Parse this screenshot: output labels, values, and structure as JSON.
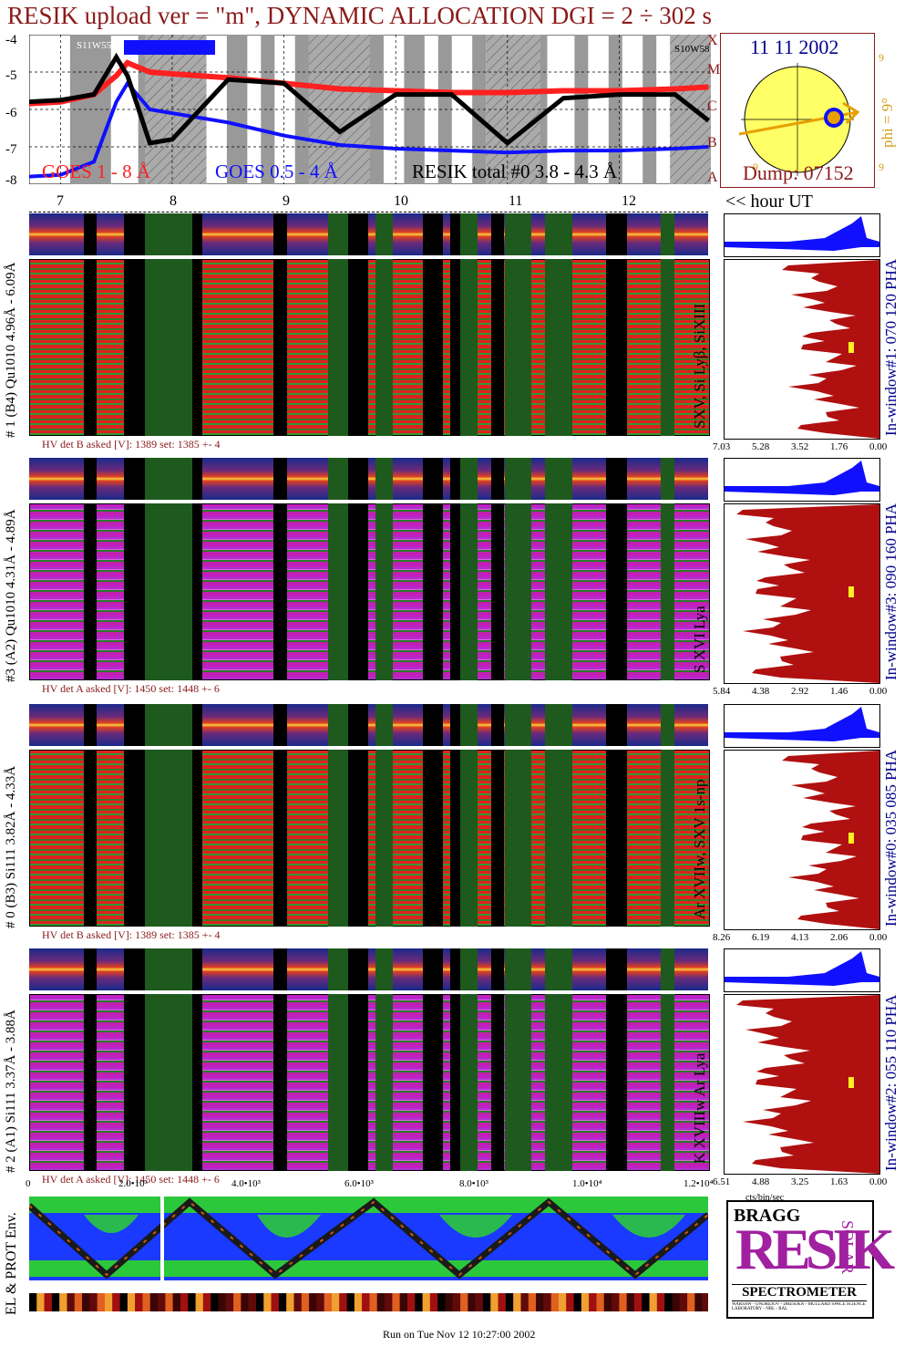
{
  "header": {
    "title": "RESIK upload ver = \"m\", DYNAMIC ALLOCATION  DGI =   2 ÷ 302 s"
  },
  "goes": {
    "y_ticks": [
      "-4",
      "-5",
      "-6",
      "-7",
      "-8"
    ],
    "legend_red": "GOES 1 - 8 Å",
    "legend_blue": "GOES 0.5 - 4 Å",
    "legend_black": "RESIK total #0  3.8 - 4.3 Å",
    "flare_classes": [
      "A",
      "B",
      "C",
      "M",
      "X"
    ],
    "top_left_label": "S11W55",
    "top_right_label": "S10W58",
    "colors": {
      "red": "#ff2020",
      "blue": "#1010ff",
      "black": "#000000",
      "shade": "#999999"
    }
  },
  "sun": {
    "date": "11 11 2002",
    "phi_label": "phi =  9°",
    "phi_side_ticks": [
      "9",
      "9",
      "9"
    ],
    "dump": "Dump: 07152",
    "colors": {
      "disk": "#ffff66",
      "arrow": "#e8a000",
      "spot": "#1010ff"
    }
  },
  "hour_axis": {
    "ticks": [
      "7",
      "8",
      "9",
      "10",
      "11",
      "12"
    ],
    "unit_label": "<< hour UT"
  },
  "panels": [
    {
      "left_label": "# 1 (B4) Qu1010 4.96Å - 6.09Å",
      "line_label": "SXV, Si Lyβ, SiXIII",
      "right_label": "In-window#1:  070 120 PHA",
      "hv_text": "HV det B asked [V]:  1389 set:  1385 +-   4",
      "hist_ticks": [
        "7.03",
        "5.28",
        "3.52",
        "1.76",
        "0.00"
      ],
      "style": "red"
    },
    {
      "left_label": "#3 (A2) Qu1010  4.31Å - 4.89Å",
      "line_label": "S XVI Lya",
      "right_label": "In-window#3:  090 160 PHA",
      "hv_text": "HV det A asked [V]:  1450 set:  1448 +-   6",
      "hist_ticks": [
        "5.84",
        "4.38",
        "2.92",
        "1.46",
        "0.00"
      ],
      "style": "magenta"
    },
    {
      "left_label": "# 0 (B3) Si111  3.82Å - 4.33Å",
      "line_label": "Ar XVIIw,  SXV 1s-np",
      "right_label": "In-window#0:  035 085 PHA",
      "hv_text": "HV det B asked [V]:  1389 set:  1385 +-   4",
      "hist_ticks": [
        "8.26",
        "6.19",
        "4.13",
        "2.06",
        "0.00"
      ],
      "style": "red"
    },
    {
      "left_label": "# 2 (A1) Si111  3.37Å -  3.88Å",
      "line_label": "K XVIIIw  Ar Lya",
      "right_label": "In-window#2:  055 110 PHA",
      "hv_text": "HV det A asked [V]:  1450 set:  1448 +-   6",
      "hist_ticks": [
        "6.51",
        "4.88",
        "3.25",
        "1.63",
        "0.00"
      ],
      "style": "magenta"
    }
  ],
  "seconds_axis": {
    "ticks": [
      "0",
      "2.0•10³",
      "4.0•10³",
      "6.0•10³",
      "8.0•10³",
      "1.0•10⁴",
      "1.2•10⁴"
    ]
  },
  "hist_unit": "cts/bin/sec",
  "bottom": {
    "left_label": "EL & PROT Env.",
    "footer": "Run on Tue Nov 12 10:27:00 2002"
  },
  "logo": {
    "letters_top": "BRAGG",
    "big": "RESIK",
    "side": "SOLAR",
    "caption": "SPECTROMETER",
    "fine_print": "WARSAW - ONDREJOV - DRESDEN - MULLARD SPACE SCIENCE LABORATORY - NRL - RAL"
  },
  "chart_data": {
    "type": "line",
    "title": "RESIK upload ver = \"m\", DYNAMIC ALLOCATION  DGI =   2 ÷ 302 s",
    "x_unit_ticks": [
      "7",
      "8",
      "9",
      "10",
      "11",
      "12"
    ],
    "ylim": [
      -8,
      -4
    ],
    "x": [
      6.7,
      7.0,
      7.3,
      7.5,
      7.6,
      7.8,
      8.0,
      8.5,
      9.0,
      9.5,
      10.0,
      10.5,
      11.0,
      11.5,
      12.0,
      12.5,
      12.8
    ],
    "series": [
      {
        "name": "GOES 1 - 8 Å",
        "values": [
          -5.85,
          -5.8,
          -5.6,
          -5.1,
          -4.75,
          -5.0,
          -5.05,
          -5.15,
          -5.3,
          -5.45,
          -5.5,
          -5.55,
          -5.55,
          -5.5,
          -5.5,
          -5.45,
          -5.4
        ]
      },
      {
        "name": "GOES 0.5 - 4 Å",
        "values": [
          -7.8,
          -7.75,
          -7.4,
          -5.8,
          -5.3,
          -6.0,
          -6.1,
          -6.35,
          -6.7,
          -6.95,
          -7.05,
          -7.1,
          -7.15,
          -7.1,
          -7.1,
          -7.05,
          -7.0
        ]
      },
      {
        "name": "RESIK total #0  3.8 - 4.3 Å",
        "values": [
          -5.8,
          -5.75,
          -5.6,
          -4.6,
          -5.1,
          -6.9,
          -6.8,
          -5.2,
          -5.3,
          -6.6,
          -5.6,
          -5.6,
          -6.9,
          -5.7,
          -5.6,
          -5.6,
          -6.3
        ]
      }
    ]
  }
}
